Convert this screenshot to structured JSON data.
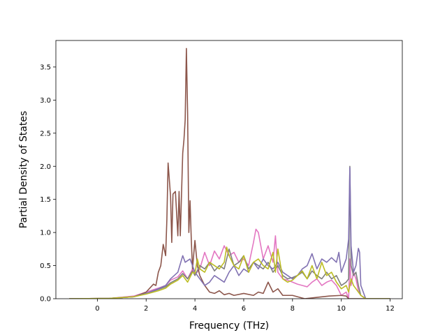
{
  "chart_data": {
    "type": "line",
    "title": "",
    "xlabel": "Frequency (THz)",
    "ylabel": "Partial Density of States",
    "xlim": [
      -1.7,
      12.5
    ],
    "ylim": [
      0,
      3.9
    ],
    "xticks": [
      0,
      2,
      4,
      6,
      8,
      10,
      12
    ],
    "xtick_labels": [
      "0",
      "2",
      "4",
      "6",
      "8",
      "10",
      "12"
    ],
    "yticks": [
      0.0,
      0.5,
      1.0,
      1.5,
      2.0,
      2.5,
      3.0,
      3.5
    ],
    "ytick_labels": [
      "0.0",
      "0.5",
      "1.0",
      "1.5",
      "2.0",
      "2.5",
      "3.0",
      "3.5"
    ],
    "grid": false,
    "legend": "none",
    "series": [
      {
        "color": "#e377c2",
        "x": [
          -1.15,
          0.5,
          1.5,
          2.0,
          2.5,
          2.8,
          3.0,
          3.3,
          3.5,
          3.7,
          3.9,
          4.0,
          4.2,
          4.4,
          4.6,
          4.8,
          5.0,
          5.2,
          5.4,
          5.6,
          5.8,
          6.0,
          6.2,
          6.4,
          6.5,
          6.6,
          6.8,
          7.0,
          7.2,
          7.3,
          7.4,
          7.6,
          7.8,
          8.0,
          8.2,
          8.4,
          8.6,
          8.8,
          9.0,
          9.2,
          9.4,
          9.6,
          9.8,
          10.0,
          10.2,
          10.3,
          10.35,
          10.4,
          10.5,
          10.6,
          10.7,
          10.8,
          11.0,
          12.0
        ],
        "y": [
          0,
          0.005,
          0.04,
          0.1,
          0.16,
          0.2,
          0.28,
          0.33,
          0.42,
          0.3,
          0.45,
          0.36,
          0.45,
          0.7,
          0.5,
          0.72,
          0.6,
          0.8,
          0.65,
          0.7,
          0.55,
          0.6,
          0.5,
          0.85,
          1.05,
          1.0,
          0.6,
          0.8,
          0.55,
          0.95,
          0.4,
          0.3,
          0.28,
          0.25,
          0.22,
          0.2,
          0.18,
          0.25,
          0.3,
          0.2,
          0.25,
          0.28,
          0.2,
          0.05,
          0.1,
          0.0,
          0.6,
          0.2,
          0.4,
          0.3,
          0.12,
          0.05,
          0.0,
          0
        ]
      },
      {
        "color": "#8c564b",
        "x": [
          -1.15,
          0.5,
          1.5,
          1.8,
          2.0,
          2.2,
          2.3,
          2.4,
          2.5,
          2.6,
          2.7,
          2.8,
          2.85,
          2.9,
          3.0,
          3.05,
          3.1,
          3.2,
          3.3,
          3.35,
          3.4,
          3.5,
          3.55,
          3.6,
          3.65,
          3.7,
          3.75,
          3.8,
          3.85,
          3.9,
          4.0,
          4.1,
          4.2,
          4.4,
          4.6,
          4.8,
          5.0,
          5.2,
          5.4,
          5.6,
          6.0,
          6.4,
          6.6,
          6.8,
          7.0,
          7.2,
          7.4,
          7.6,
          8.0,
          8.5,
          9.0,
          9.5,
          10.0,
          10.2,
          10.3,
          10.35,
          10.4,
          10.6,
          11.0,
          12.0
        ],
        "y": [
          0,
          0.005,
          0.03,
          0.07,
          0.1,
          0.18,
          0.22,
          0.2,
          0.4,
          0.5,
          0.82,
          0.65,
          1.2,
          2.05,
          1.55,
          0.85,
          1.58,
          1.62,
          0.95,
          1.62,
          0.95,
          2.2,
          2.4,
          2.7,
          3.78,
          2.8,
          1.0,
          1.48,
          0.9,
          0.45,
          0.88,
          0.5,
          0.35,
          0.2,
          0.1,
          0.08,
          0.12,
          0.06,
          0.08,
          0.05,
          0.08,
          0.05,
          0.1,
          0.08,
          0.25,
          0.1,
          0.15,
          0.05,
          0.05,
          0.0,
          0.02,
          0.04,
          0.05,
          0.04,
          0.0,
          0.0,
          0.0,
          0.0,
          0.0,
          0
        ]
      },
      {
        "color": "#7f7f7f",
        "x": [
          -1.15,
          0.5,
          1.5,
          2.0,
          2.5,
          2.8,
          3.0,
          3.3,
          3.5,
          3.7,
          3.9,
          4.0,
          4.2,
          4.4,
          4.6,
          4.8,
          5.0,
          5.2,
          5.4,
          5.6,
          5.8,
          6.0,
          6.2,
          6.4,
          6.6,
          6.8,
          7.0,
          7.2,
          7.4,
          7.6,
          7.8,
          8.0,
          8.2,
          8.4,
          8.6,
          8.8,
          9.0,
          9.2,
          9.4,
          9.6,
          9.8,
          10.0,
          10.2,
          10.3,
          10.35,
          10.4,
          10.5,
          10.6,
          10.7,
          10.8,
          11.0,
          12.0
        ],
        "y": [
          0,
          0.005,
          0.03,
          0.08,
          0.14,
          0.18,
          0.24,
          0.3,
          0.38,
          0.3,
          0.42,
          0.35,
          0.5,
          0.45,
          0.55,
          0.42,
          0.5,
          0.45,
          0.75,
          0.5,
          0.55,
          0.65,
          0.45,
          0.55,
          0.5,
          0.45,
          0.55,
          0.4,
          0.5,
          0.35,
          0.3,
          0.32,
          0.35,
          0.4,
          0.3,
          0.42,
          0.35,
          0.3,
          0.4,
          0.3,
          0.35,
          0.2,
          0.25,
          0.3,
          2.0,
          0.5,
          0.35,
          0.4,
          0.2,
          0.05,
          0.0,
          0
        ]
      },
      {
        "color": "#8172b2",
        "x": [
          -1.15,
          0.5,
          1.5,
          2.0,
          2.5,
          2.8,
          3.0,
          3.3,
          3.5,
          3.6,
          3.8,
          4.0,
          4.2,
          4.4,
          4.6,
          4.8,
          5.0,
          5.2,
          5.4,
          5.6,
          5.8,
          6.0,
          6.2,
          6.4,
          6.6,
          6.8,
          7.0,
          7.2,
          7.4,
          7.6,
          7.8,
          8.0,
          8.2,
          8.4,
          8.6,
          8.8,
          9.0,
          9.2,
          9.4,
          9.6,
          9.8,
          9.9,
          10.0,
          10.1,
          10.2,
          10.3,
          10.35,
          10.4,
          10.5,
          10.6,
          10.7,
          10.75,
          10.8,
          11.0,
          12.0
        ],
        "y": [
          0,
          0.005,
          0.03,
          0.08,
          0.15,
          0.2,
          0.3,
          0.4,
          0.65,
          0.55,
          0.6,
          0.4,
          0.3,
          0.2,
          0.25,
          0.35,
          0.3,
          0.25,
          0.4,
          0.5,
          0.35,
          0.45,
          0.4,
          0.55,
          0.45,
          0.6,
          0.5,
          0.45,
          0.55,
          0.4,
          0.35,
          0.3,
          0.35,
          0.45,
          0.5,
          0.68,
          0.45,
          0.6,
          0.55,
          0.62,
          0.55,
          0.7,
          0.4,
          0.5,
          0.6,
          0.9,
          1.98,
          0.8,
          0.4,
          0.5,
          0.76,
          0.7,
          0.2,
          0.0,
          0
        ]
      },
      {
        "color": "#bcbd22",
        "x": [
          -1.15,
          0.5,
          1.5,
          2.0,
          2.5,
          2.8,
          3.0,
          3.3,
          3.5,
          3.7,
          3.9,
          4.0,
          4.1,
          4.2,
          4.4,
          4.6,
          4.8,
          5.0,
          5.2,
          5.3,
          5.4,
          5.6,
          5.8,
          6.0,
          6.2,
          6.4,
          6.6,
          6.8,
          7.0,
          7.2,
          7.3,
          7.4,
          7.6,
          7.8,
          8.0,
          8.2,
          8.4,
          8.6,
          8.8,
          9.0,
          9.2,
          9.4,
          9.6,
          9.8,
          10.0,
          10.2,
          10.3,
          10.4,
          10.5,
          10.6,
          10.7,
          10.8,
          11.0,
          12.0
        ],
        "y": [
          0,
          0.005,
          0.03,
          0.07,
          0.12,
          0.16,
          0.22,
          0.28,
          0.35,
          0.25,
          0.4,
          0.38,
          0.6,
          0.45,
          0.4,
          0.55,
          0.5,
          0.45,
          0.55,
          0.78,
          0.65,
          0.5,
          0.45,
          0.65,
          0.4,
          0.55,
          0.6,
          0.5,
          0.45,
          0.7,
          0.4,
          0.75,
          0.3,
          0.25,
          0.28,
          0.35,
          0.42,
          0.3,
          0.5,
          0.3,
          0.55,
          0.35,
          0.4,
          0.25,
          0.15,
          0.2,
          0.1,
          0.3,
          0.2,
          0.15,
          0.1,
          0.05,
          0.0,
          0
        ]
      }
    ]
  }
}
